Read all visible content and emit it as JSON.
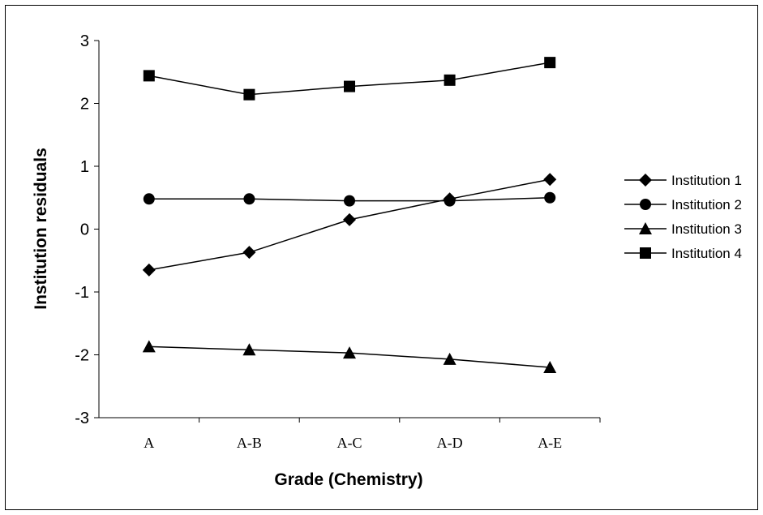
{
  "chart_data": {
    "type": "line",
    "title": "",
    "xlabel": "Grade (Chemistry)",
    "ylabel": "Institution residuals",
    "categories": [
      "A",
      "A-B",
      "A-C",
      "A-D",
      "A-E"
    ],
    "ylim": [
      -3,
      3
    ],
    "yticks": [
      "3",
      "2",
      "1",
      "0",
      "-1",
      "-2",
      "-3"
    ],
    "ytick_values": [
      3,
      2,
      1,
      0,
      -1,
      -2,
      -3
    ],
    "grid": false,
    "legend_position": "right",
    "series": [
      {
        "name": "Institution 1",
        "marker": "diamond",
        "values": [
          -0.65,
          -0.37,
          0.15,
          0.48,
          0.79
        ]
      },
      {
        "name": "Institution 2",
        "marker": "circle",
        "values": [
          0.48,
          0.48,
          0.45,
          0.45,
          0.5
        ]
      },
      {
        "name": "Institution 3",
        "marker": "triangle",
        "values": [
          -1.87,
          -1.92,
          -1.97,
          -2.07,
          -2.2
        ]
      },
      {
        "name": "Institution 4",
        "marker": "square",
        "values": [
          2.44,
          2.14,
          2.27,
          2.37,
          2.65
        ]
      }
    ],
    "line_color": "#000000",
    "marker_color": "#000000"
  }
}
